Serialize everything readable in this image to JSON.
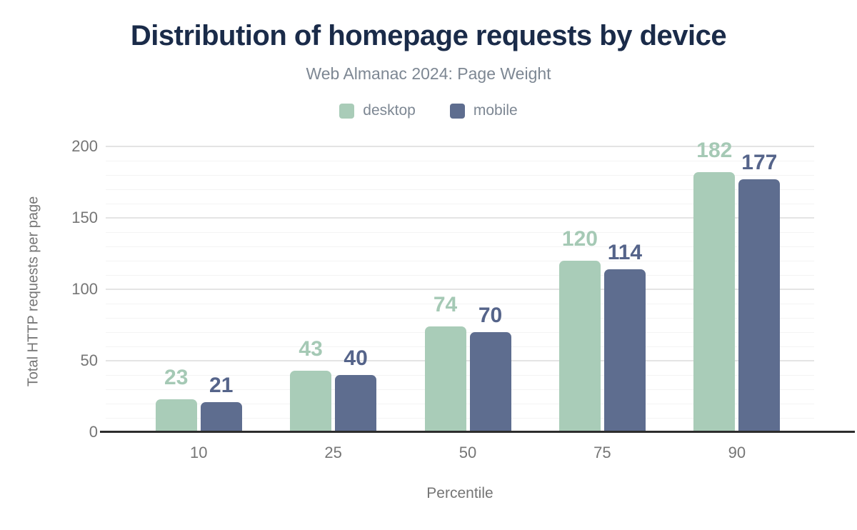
{
  "chart_data": {
    "type": "bar",
    "title": "Distribution of homepage requests by device",
    "subtitle": "Web Almanac 2024: Page Weight",
    "xlabel": "Percentile",
    "ylabel": "Total HTTP requests per page",
    "categories": [
      "10",
      "25",
      "50",
      "75",
      "90"
    ],
    "series": [
      {
        "name": "desktop",
        "color": "#a9ccb8",
        "label_color": "#a5c9b5",
        "values": [
          23,
          43,
          74,
          120,
          182
        ]
      },
      {
        "name": "mobile",
        "color": "#5e6d8f",
        "label_color": "#55648a",
        "values": [
          21,
          40,
          70,
          114,
          177
        ]
      }
    ],
    "ylim": [
      0,
      200
    ],
    "yticks": [
      0,
      50,
      100,
      150,
      200
    ],
    "minor_tick_step": 10,
    "grid": true,
    "legend_position": "top"
  },
  "colors": {
    "background": "#ffffff",
    "title": "#1a2b49",
    "subtitle": "#7d8793",
    "axis_text": "#757575",
    "major_grid": "#e4e4e4",
    "minor_grid": "#f4f4f4",
    "baseline": "#2d2d2d"
  }
}
